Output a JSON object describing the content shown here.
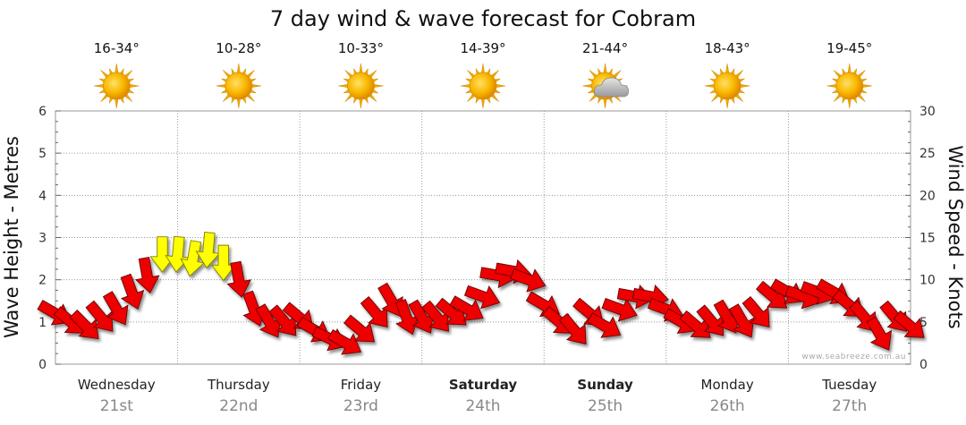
{
  "chart_data": {
    "type": "line",
    "title": "7 day wind & wave forecast for Cobram",
    "ylabel_left": "Wave Height - Metres",
    "ylabel_right": "Wind Speed - Knots",
    "ylim_left": [
      0,
      6
    ],
    "ylim_right": [
      0,
      30
    ],
    "yticks_left": [
      "0",
      "1",
      "2",
      "3",
      "4",
      "5",
      "6"
    ],
    "yticks_right": [
      "0",
      "5",
      "10",
      "15",
      "20",
      "25",
      "30"
    ],
    "grid": true,
    "credit": "www.seabreeze.com.au",
    "days": [
      {
        "name": "Wednesday",
        "date": "21st",
        "temp": "16-34°",
        "weather": "sunny",
        "bold": false
      },
      {
        "name": "Thursday",
        "date": "22nd",
        "temp": "10-28°",
        "weather": "sunny",
        "bold": false
      },
      {
        "name": "Friday",
        "date": "23rd",
        "temp": "10-33°",
        "weather": "sunny",
        "bold": false
      },
      {
        "name": "Saturday",
        "date": "24th",
        "temp": "14-39°",
        "weather": "sunny",
        "bold": true
      },
      {
        "name": "Sunday",
        "date": "25th",
        "temp": "21-44°",
        "weather": "partly-cloudy",
        "bold": true
      },
      {
        "name": "Monday",
        "date": "26th",
        "temp": "18-43°",
        "weather": "sunny",
        "bold": false
      },
      {
        "name": "Tuesday",
        "date": "27th",
        "temp": "19-45°",
        "weather": "sunny",
        "bold": false
      }
    ],
    "series": [
      {
        "unit": "knots",
        "x_hours": [
          0,
          3,
          6,
          9,
          12,
          15,
          18,
          21,
          24,
          27,
          30,
          33,
          36,
          39,
          42,
          45,
          48,
          51,
          54,
          57,
          60,
          63,
          66,
          69,
          72,
          75,
          78,
          81,
          84,
          87,
          90,
          93,
          96,
          99,
          102,
          105,
          108,
          111,
          114,
          117,
          120,
          123,
          126,
          129,
          132,
          135,
          138,
          141,
          144,
          147,
          150,
          153,
          156,
          159,
          162,
          165,
          168
        ],
        "values": [
          6,
          5,
          4.5,
          5.5,
          6.5,
          8.5,
          10.5,
          13,
          13,
          12.5,
          13.5,
          12,
          10,
          6.5,
          5,
          5,
          5.5,
          4,
          3,
          2.5,
          4,
          6,
          7.5,
          5.5,
          5.5,
          5.5,
          6,
          6.5,
          8,
          10.5,
          11,
          10,
          7,
          5,
          4,
          6,
          4.5,
          6.5,
          8,
          8,
          6.5,
          5,
          4.5,
          5,
          5.5,
          5,
          6,
          8,
          8.5,
          8,
          8.5,
          8.5,
          7,
          5.5,
          3.5,
          5.5,
          4.5
        ],
        "directions_deg": [
          120,
          130,
          135,
          140,
          150,
          160,
          170,
          180,
          185,
          190,
          185,
          180,
          170,
          160,
          150,
          140,
          130,
          120,
          115,
          120,
          130,
          140,
          150,
          160,
          150,
          140,
          130,
          120,
          110,
          100,
          100,
          110,
          120,
          130,
          140,
          130,
          120,
          110,
          100,
          100,
          110,
          120,
          130,
          140,
          150,
          150,
          140,
          130,
          120,
          110,
          110,
          120,
          130,
          140,
          150,
          140,
          130
        ],
        "strong_threshold": 12
      }
    ]
  }
}
